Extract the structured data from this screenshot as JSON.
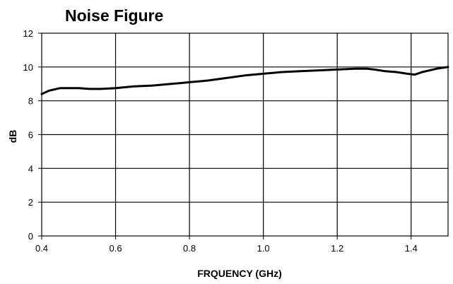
{
  "chart_data": {
    "type": "line",
    "title": "Noise Figure",
    "xlabel": "FRQUENCY (GHz)",
    "ylabel": "dB",
    "xlim": [
      0.4,
      1.5
    ],
    "ylim": [
      0,
      12
    ],
    "grid": true,
    "x_ticks": [
      0.4,
      0.6,
      0.8,
      1.0,
      1.2,
      1.4
    ],
    "x_tick_labels": [
      "0.4",
      "0.6",
      "0.8",
      "1.0",
      "1.2",
      "1.4"
    ],
    "y_ticks": [
      0,
      2,
      4,
      6,
      8,
      10,
      12
    ],
    "y_tick_labels": [
      "0",
      "2",
      "4",
      "6",
      "8",
      "10",
      "12"
    ],
    "colors": {
      "line": "#000000",
      "grid": "#000000",
      "background": "#ffffff"
    },
    "series": [
      {
        "x": [
          0.4,
          0.42,
          0.45,
          0.5,
          0.53,
          0.56,
          0.6,
          0.65,
          0.7,
          0.75,
          0.8,
          0.85,
          0.9,
          0.95,
          1.0,
          1.05,
          1.1,
          1.15,
          1.2,
          1.25,
          1.28,
          1.3,
          1.33,
          1.36,
          1.39,
          1.41,
          1.43,
          1.45,
          1.47,
          1.5
        ],
        "y": [
          8.4,
          8.6,
          8.75,
          8.75,
          8.7,
          8.7,
          8.75,
          8.85,
          8.9,
          9.0,
          9.1,
          9.2,
          9.35,
          9.5,
          9.6,
          9.7,
          9.75,
          9.8,
          9.85,
          9.9,
          9.9,
          9.85,
          9.75,
          9.7,
          9.6,
          9.55,
          9.7,
          9.8,
          9.9,
          10.0
        ]
      }
    ]
  }
}
